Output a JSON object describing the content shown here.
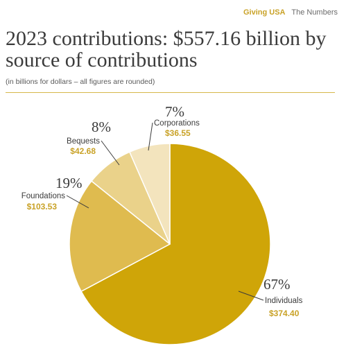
{
  "header": {
    "brand": "Giving USA",
    "section": "The Numbers"
  },
  "colors": {
    "accent": "#c9a227",
    "value_text": "#c9a227"
  },
  "chart_data": {
    "type": "pie",
    "title": "2023 contributions: $557.16 billion by source of contributions",
    "subtitle": "(in billions for dollars – all figures are rounded)",
    "slices": [
      {
        "label": "Individuals",
        "value": 374.4,
        "value_label": "$374.40",
        "percent_label": "67%",
        "color": "#cfa508"
      },
      {
        "label": "Foundations",
        "value": 103.53,
        "value_label": "$103.53",
        "percent_label": "19%",
        "color": "#dfbb4f"
      },
      {
        "label": "Bequests",
        "value": 42.68,
        "value_label": "$42.68",
        "percent_label": "8%",
        "color": "#ead28a"
      },
      {
        "label": "Corporations",
        "value": 36.55,
        "value_label": "$36.55",
        "percent_label": "7%",
        "color": "#f3e4bd"
      }
    ]
  }
}
